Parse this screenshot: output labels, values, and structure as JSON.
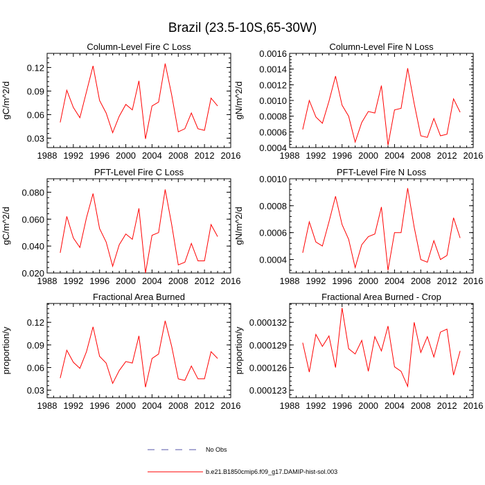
{
  "title": "Brazil (23.5-10S,65-30W)",
  "legend": [
    {
      "label": "No Obs",
      "color": "#5555aa",
      "dash": "dashed"
    },
    {
      "label": "b.e21.B1850cmip6.f09_g17.DAMIP-hist-sol.003",
      "color": "#ff0000",
      "dash": "solid"
    }
  ],
  "chart_data": [
    {
      "type": "line",
      "title": "Column-Level Fire C Loss",
      "ylabel": "gC/m^2/d",
      "xlim": [
        1988,
        2016
      ],
      "ylim": [
        0.018,
        0.138
      ],
      "xticks": [
        1988,
        1992,
        1996,
        2000,
        2004,
        2008,
        2012,
        2016
      ],
      "yticks": [
        0.03,
        0.06,
        0.09,
        0.12
      ],
      "ytick_labels": [
        "0.03",
        "0.06",
        "0.09",
        "0.12"
      ],
      "x": [
        1990,
        1991,
        1992,
        1993,
        1994,
        1995,
        1996,
        1997,
        1998,
        1999,
        2000,
        2001,
        2002,
        2003,
        2004,
        2005,
        2006,
        2007,
        2008,
        2009,
        2010,
        2011,
        2012,
        2013,
        2014
      ],
      "series": [
        {
          "color": "#ff0000",
          "values": [
            0.05,
            0.091,
            0.069,
            0.056,
            0.089,
            0.122,
            0.078,
            0.062,
            0.037,
            0.058,
            0.073,
            0.066,
            0.103,
            0.029,
            0.071,
            0.076,
            0.125,
            0.085,
            0.038,
            0.042,
            0.062,
            0.042,
            0.04,
            0.081,
            0.071
          ]
        }
      ]
    },
    {
      "type": "line",
      "title": "Column-Level Fire N Loss",
      "ylabel": "gN/m^2/d",
      "xlim": [
        1988,
        2016
      ],
      "ylim": [
        0.0004,
        0.0016
      ],
      "xticks": [
        1988,
        1992,
        1996,
        2000,
        2004,
        2008,
        2012,
        2016
      ],
      "yticks": [
        0.0004,
        0.0006,
        0.0008,
        0.001,
        0.0012,
        0.0014,
        0.0016
      ],
      "ytick_labels": [
        "0.0004",
        "0.0006",
        "0.0008",
        "0.0010",
        "0.0012",
        "0.0014",
        "0.0016"
      ],
      "x": [
        1990,
        1991,
        1992,
        1993,
        1994,
        1995,
        1996,
        1997,
        1998,
        1999,
        2000,
        2001,
        2002,
        2003,
        2004,
        2005,
        2006,
        2007,
        2008,
        2009,
        2010,
        2011,
        2012,
        2013,
        2014
      ],
      "series": [
        {
          "color": "#ff0000",
          "values": [
            0.00063,
            0.001,
            0.00079,
            0.00071,
            0.00099,
            0.00131,
            0.00094,
            0.0008,
            0.00047,
            0.00072,
            0.00086,
            0.00084,
            0.00119,
            0.00043,
            0.00088,
            0.0009,
            0.00141,
            0.00096,
            0.00055,
            0.00053,
            0.00077,
            0.00055,
            0.00057,
            0.00102,
            0.00085
          ]
        }
      ]
    },
    {
      "type": "line",
      "title": "PFT-Level Fire C Loss",
      "ylabel": "gC/m^2/d",
      "xlim": [
        1988,
        2016
      ],
      "ylim": [
        0.02,
        0.09
      ],
      "xticks": [
        1988,
        1992,
        1996,
        2000,
        2004,
        2008,
        2012,
        2016
      ],
      "yticks": [
        0.02,
        0.04,
        0.06,
        0.08
      ],
      "ytick_labels": [
        "0.020",
        "0.040",
        "0.060",
        "0.080"
      ],
      "x": [
        1990,
        1991,
        1992,
        1993,
        1994,
        1995,
        1996,
        1997,
        1998,
        1999,
        2000,
        2001,
        2002,
        2003,
        2004,
        2005,
        2006,
        2007,
        2008,
        2009,
        2010,
        2011,
        2012,
        2013,
        2014
      ],
      "series": [
        {
          "color": "#ff0000",
          "values": [
            0.035,
            0.062,
            0.046,
            0.039,
            0.061,
            0.079,
            0.053,
            0.043,
            0.025,
            0.041,
            0.049,
            0.045,
            0.068,
            0.02,
            0.048,
            0.05,
            0.082,
            0.056,
            0.026,
            0.028,
            0.042,
            0.029,
            0.029,
            0.056,
            0.047
          ]
        }
      ]
    },
    {
      "type": "line",
      "title": "PFT-Level Fire N Loss",
      "ylabel": "gN/m^2/d",
      "xlim": [
        1988,
        2016
      ],
      "ylim": [
        0.0003,
        0.001
      ],
      "xticks": [
        1988,
        1992,
        1996,
        2000,
        2004,
        2008,
        2012,
        2016
      ],
      "yticks": [
        0.0004,
        0.0006,
        0.0008,
        0.001
      ],
      "ytick_labels": [
        "0.0004",
        "0.0006",
        "0.0008",
        "0.0010"
      ],
      "x": [
        1990,
        1991,
        1992,
        1993,
        1994,
        1995,
        1996,
        1997,
        1998,
        1999,
        2000,
        2001,
        2002,
        2003,
        2004,
        2005,
        2006,
        2007,
        2008,
        2009,
        2010,
        2011,
        2012,
        2013,
        2014
      ],
      "series": [
        {
          "color": "#ff0000",
          "values": [
            0.00045,
            0.00068,
            0.00053,
            0.0005,
            0.00068,
            0.00087,
            0.00066,
            0.00055,
            0.00034,
            0.00051,
            0.00057,
            0.00059,
            0.00079,
            0.00032,
            0.0006,
            0.0006,
            0.00093,
            0.00064,
            0.0004,
            0.00038,
            0.00054,
            0.0004,
            0.00043,
            0.00071,
            0.00056
          ]
        }
      ]
    },
    {
      "type": "line",
      "title": "Fractional Area Burned",
      "ylabel": "proportion/y",
      "xlim": [
        1988,
        2016
      ],
      "ylim": [
        0.02,
        0.145
      ],
      "xticks": [
        1988,
        1992,
        1996,
        2000,
        2004,
        2008,
        2012,
        2016
      ],
      "yticks": [
        0.03,
        0.06,
        0.09,
        0.12
      ],
      "ytick_labels": [
        "0.03",
        "0.06",
        "0.09",
        "0.12"
      ],
      "x": [
        1990,
        1991,
        1992,
        1993,
        1994,
        1995,
        1996,
        1997,
        1998,
        1999,
        2000,
        2001,
        2002,
        2003,
        2004,
        2005,
        2006,
        2007,
        2008,
        2009,
        2010,
        2011,
        2012,
        2013,
        2014
      ],
      "series": [
        {
          "color": "#ff0000",
          "values": [
            0.046,
            0.083,
            0.067,
            0.059,
            0.081,
            0.114,
            0.075,
            0.066,
            0.039,
            0.056,
            0.068,
            0.066,
            0.102,
            0.034,
            0.072,
            0.078,
            0.122,
            0.088,
            0.045,
            0.043,
            0.062,
            0.045,
            0.045,
            0.081,
            0.072
          ]
        }
      ]
    },
    {
      "type": "line",
      "title": "Fractional Area Burned - Crop",
      "ylabel": "proportion/y",
      "xlim": [
        1988,
        2016
      ],
      "ylim": [
        0.000122,
        0.0001345
      ],
      "xticks": [
        1988,
        1992,
        1996,
        2000,
        2004,
        2008,
        2012,
        2016
      ],
      "yticks": [
        0.000123,
        0.000126,
        0.000129,
        0.000132
      ],
      "ytick_labels": [
        "0.000123",
        "0.000126",
        "0.000129",
        "0.000132"
      ],
      "x": [
        1990,
        1991,
        1992,
        1993,
        1994,
        1995,
        1996,
        1997,
        1998,
        1999,
        2000,
        2001,
        2002,
        2003,
        2004,
        2005,
        2006,
        2007,
        2008,
        2009,
        2010,
        2011,
        2012,
        2013,
        2014
      ],
      "series": [
        {
          "color": "#ff0000",
          "values": [
            0.0001293,
            0.0001254,
            0.0001304,
            0.0001288,
            0.0001302,
            0.000126,
            0.0001339,
            0.0001285,
            0.0001278,
            0.0001296,
            0.0001255,
            0.0001301,
            0.0001282,
            0.0001315,
            0.0001261,
            0.0001255,
            0.0001235,
            0.000132,
            0.000128,
            0.0001301,
            0.0001274,
            0.0001307,
            0.0001311,
            0.000125,
            0.0001282
          ]
        }
      ]
    }
  ]
}
